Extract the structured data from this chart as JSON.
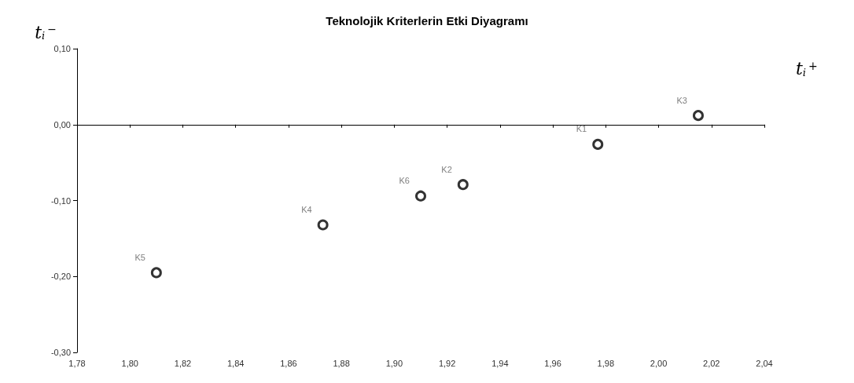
{
  "chart_data": {
    "type": "scatter",
    "title": "Teknolojik Kriterlerin Etki Diyagramı",
    "xlabel": "t$_{i}$$^{+}$",
    "ylabel": "t$_{i}$$^{−}$",
    "x": [
      1.977,
      1.926,
      2.015,
      1.873,
      1.81,
      1.91
    ],
    "values": [
      -0.026,
      -0.079,
      0.012,
      -0.132,
      -0.195,
      -0.094
    ],
    "color": "#000000",
    "marker": "circle",
    "xlim": [
      1.78,
      2.04
    ],
    "xticks": [
      {
        "value": 1.78,
        "label": "1,78"
      },
      {
        "value": 1.8,
        "label": "1,80"
      },
      {
        "value": 1.82,
        "label": "1,82"
      },
      {
        "value": 1.84,
        "label": "1,84"
      },
      {
        "value": 1.86,
        "label": "1,86"
      },
      {
        "value": 1.88,
        "label": "1,88"
      },
      {
        "value": 1.9,
        "label": "1,90"
      },
      {
        "value": 1.92,
        "label": "1,92"
      },
      {
        "value": 1.94,
        "label": "1,94"
      },
      {
        "value": 1.96,
        "label": "1,96"
      },
      {
        "value": 1.98,
        "label": "1,98"
      },
      {
        "value": 2.0,
        "label": "2,00"
      },
      {
        "value": 2.02,
        "label": "2,02"
      },
      {
        "value": 2.04,
        "label": "2,04"
      }
    ],
    "ylim": [
      -0.3,
      0.1
    ],
    "yticks": [
      {
        "value": -0.3,
        "label": "-0,30"
      },
      {
        "value": -0.2,
        "label": "-0,20"
      },
      {
        "value": -0.1,
        "label": "-0,10"
      },
      {
        "value": 0,
        "label": "0,00"
      },
      {
        "value": 0.1,
        "label": "0,10"
      }
    ],
    "annotations": [
      {
        "text": "K1",
        "x": 1.977,
        "y": -0.026
      },
      {
        "text": "K2",
        "x": 1.926,
        "y": -0.079
      },
      {
        "text": "K3",
        "x": 2.015,
        "y": 0.012
      },
      {
        "text": "K4",
        "x": 1.873,
        "y": -0.132
      },
      {
        "text": "K5",
        "x": 1.81,
        "y": -0.195
      },
      {
        "text": "K6",
        "x": 1.91,
        "y": -0.094
      }
    ]
  }
}
